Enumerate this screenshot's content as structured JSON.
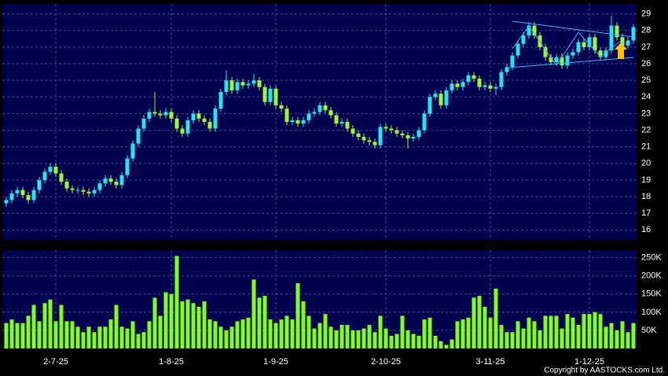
{
  "copyright": "Copyright by AASTOCKS.com Ltd.",
  "chart_data": [
    {
      "type": "candlestick",
      "categories": [
        null,
        null,
        null,
        null,
        null,
        null,
        null,
        null,
        null,
        "2-7-25",
        null,
        null,
        null,
        null,
        null,
        null,
        null,
        null,
        null,
        null,
        null,
        null,
        null,
        null,
        null,
        null,
        null,
        null,
        null,
        null,
        "1-8-25",
        null,
        null,
        null,
        null,
        null,
        null,
        null,
        null,
        null,
        null,
        null,
        null,
        null,
        null,
        null,
        null,
        null,
        null,
        "1-9-25",
        null,
        null,
        null,
        null,
        null,
        null,
        null,
        null,
        null,
        null,
        null,
        null,
        null,
        null,
        null,
        null,
        null,
        null,
        null,
        "2-10-25",
        null,
        null,
        null,
        null,
        null,
        null,
        null,
        null,
        null,
        null,
        null,
        null,
        null,
        null,
        null,
        null,
        null,
        null,
        "3-11-25",
        null,
        null,
        null,
        null,
        null,
        null,
        null,
        null,
        null,
        null,
        null,
        null,
        null,
        null,
        null,
        null,
        null,
        "1-12-25",
        null,
        null,
        null,
        null,
        null,
        null,
        null,
        null
      ],
      "open": [
        17.6,
        17.8,
        18.2,
        18.4,
        18.1,
        17.8,
        18.4,
        19.0,
        19.5,
        19.8,
        19.4,
        18.9,
        18.5,
        18.4,
        18.4,
        18.3,
        18.2,
        18.4,
        18.8,
        19.1,
        18.9,
        18.7,
        19.3,
        20.3,
        21.2,
        22.1,
        22.7,
        23.1,
        23.0,
        22.9,
        23.1,
        22.7,
        22.1,
        21.8,
        22.6,
        23.0,
        22.7,
        22.5,
        22.1,
        23.3,
        24.3,
        25.0,
        24.4,
        24.9,
        24.7,
        24.8,
        25.0,
        24.6,
        23.7,
        24.5,
        23.5,
        23.3,
        22.5,
        22.6,
        22.4,
        22.6,
        23.0,
        23.1,
        23.5,
        23.2,
        22.9,
        22.4,
        22.5,
        22.1,
        21.8,
        21.6,
        21.4,
        21.3,
        21.1,
        22.2,
        22.1,
        22.0,
        21.8,
        21.7,
        21.5,
        21.6,
        22.0,
        23.0,
        24.0,
        24.2,
        23.5,
        24.4,
        24.8,
        24.6,
        24.9,
        25.3,
        25.1,
        24.6,
        24.7,
        24.5,
        24.6,
        25.5,
        25.8,
        26.5,
        27.2,
        27.7,
        28.3,
        27.7,
        27.0,
        26.4,
        26.1,
        26.4,
        25.9,
        26.5,
        26.7,
        27.3,
        27.0,
        27.6,
        26.8,
        26.4,
        26.8,
        28.3,
        27.6,
        27.1,
        27.4
      ],
      "high": [
        18.0,
        18.4,
        18.6,
        18.6,
        18.3,
        18.6,
        19.2,
        19.7,
        20.0,
        20.0,
        19.6,
        19.1,
        18.7,
        18.6,
        18.6,
        18.5,
        18.6,
        19.0,
        19.3,
        19.3,
        19.1,
        19.5,
        20.5,
        21.4,
        22.3,
        22.9,
        23.3,
        24.3,
        23.2,
        23.3,
        23.3,
        22.9,
        22.3,
        22.8,
        23.2,
        23.2,
        22.9,
        22.7,
        23.5,
        24.5,
        25.6,
        25.2,
        25.1,
        25.1,
        25.0,
        25.4,
        25.2,
        24.8,
        24.7,
        24.7,
        23.7,
        23.5,
        22.8,
        22.8,
        22.8,
        23.2,
        23.3,
        23.7,
        23.7,
        23.4,
        23.1,
        22.7,
        22.7,
        22.3,
        22.0,
        21.8,
        21.6,
        21.5,
        22.4,
        22.4,
        22.3,
        22.2,
        22.0,
        21.9,
        21.8,
        22.2,
        23.2,
        24.2,
        24.4,
        24.4,
        24.6,
        25.0,
        25.0,
        25.1,
        25.5,
        25.5,
        25.3,
        24.9,
        24.9,
        24.8,
        25.7,
        26.0,
        26.7,
        27.4,
        27.9,
        28.5,
        28.5,
        27.9,
        27.2,
        26.6,
        26.6,
        26.6,
        26.7,
        26.9,
        27.5,
        27.5,
        27.8,
        27.8,
        27.0,
        27.0,
        28.9,
        28.5,
        27.8,
        27.6,
        28.4
      ],
      "low": [
        17.4,
        17.6,
        18.0,
        17.9,
        17.6,
        17.6,
        18.2,
        18.8,
        19.3,
        19.2,
        18.7,
        18.3,
        18.2,
        18.2,
        18.1,
        18.0,
        18.0,
        18.2,
        18.6,
        18.7,
        18.5,
        18.5,
        19.1,
        20.1,
        21.0,
        21.9,
        22.5,
        22.8,
        22.7,
        22.7,
        22.5,
        21.9,
        21.6,
        21.6,
        22.4,
        22.5,
        22.3,
        21.9,
        21.9,
        23.1,
        24.1,
        24.2,
        24.2,
        24.5,
        24.5,
        24.6,
        24.4,
        23.5,
        23.5,
        23.3,
        23.1,
        22.3,
        22.3,
        22.2,
        22.2,
        22.4,
        22.8,
        22.9,
        23.0,
        22.7,
        22.2,
        22.2,
        21.9,
        21.6,
        21.4,
        21.2,
        21.1,
        20.9,
        20.9,
        21.9,
        21.8,
        21.6,
        21.5,
        20.9,
        21.3,
        21.4,
        21.8,
        22.8,
        23.8,
        23.3,
        23.3,
        24.2,
        24.4,
        24.4,
        24.7,
        24.9,
        24.4,
        24.4,
        24.3,
        24.1,
        24.4,
        25.3,
        25.6,
        26.3,
        27.0,
        27.5,
        27.5,
        26.8,
        26.2,
        25.9,
        25.9,
        25.7,
        25.7,
        26.3,
        26.5,
        26.8,
        26.8,
        26.6,
        26.2,
        26.2,
        26.6,
        27.4,
        26.9,
        26.9,
        27.2
      ],
      "close": [
        17.8,
        18.2,
        18.4,
        18.1,
        17.8,
        18.4,
        19.0,
        19.5,
        19.8,
        19.4,
        18.9,
        18.5,
        18.4,
        18.4,
        18.3,
        18.2,
        18.4,
        18.8,
        19.1,
        18.9,
        18.7,
        19.3,
        20.3,
        21.2,
        22.1,
        22.7,
        23.1,
        23.0,
        22.9,
        23.1,
        22.7,
        22.1,
        21.8,
        22.6,
        23.0,
        22.7,
        22.5,
        22.1,
        23.3,
        24.3,
        25.0,
        24.4,
        24.9,
        24.7,
        24.8,
        25.0,
        24.6,
        23.7,
        24.5,
        23.5,
        23.3,
        22.5,
        22.6,
        22.4,
        22.6,
        23.0,
        23.1,
        23.5,
        23.2,
        22.9,
        22.4,
        22.5,
        22.1,
        21.8,
        21.6,
        21.4,
        21.3,
        21.1,
        22.2,
        22.1,
        22.0,
        21.8,
        21.7,
        21.5,
        21.6,
        22.0,
        23.0,
        24.0,
        24.2,
        23.5,
        24.4,
        24.8,
        24.6,
        24.9,
        25.3,
        25.1,
        24.6,
        24.7,
        24.5,
        24.6,
        25.5,
        25.8,
        26.5,
        27.2,
        27.7,
        28.3,
        27.7,
        27.0,
        26.4,
        26.1,
        26.4,
        25.9,
        26.5,
        26.7,
        27.3,
        27.0,
        27.6,
        26.8,
        26.4,
        26.8,
        28.3,
        27.6,
        27.1,
        27.4,
        28.2
      ],
      "up_color": "#22e6f2",
      "down_color": "#9ff53a",
      "ylim": [
        15.4,
        29.6
      ],
      "yticks": [
        16,
        17,
        18,
        19,
        20,
        21,
        22,
        23,
        24,
        25,
        26,
        27,
        28,
        29
      ],
      "grid": true
    },
    {
      "type": "bar",
      "values": [
        70000,
        80000,
        70000,
        70000,
        90000,
        120000,
        75000,
        125000,
        135000,
        75000,
        120000,
        75000,
        75000,
        60000,
        45000,
        60000,
        45000,
        60000,
        60000,
        80000,
        120000,
        60000,
        55000,
        75000,
        40000,
        45000,
        75000,
        140000,
        90000,
        155000,
        150000,
        255000,
        130000,
        135000,
        125000,
        115000,
        130000,
        80000,
        75000,
        60000,
        50000,
        60000,
        75000,
        80000,
        85000,
        190000,
        140000,
        145000,
        80000,
        70000,
        80000,
        90000,
        80000,
        180000,
        130000,
        90000,
        55000,
        70000,
        95000,
        60000,
        50000,
        65000,
        65000,
        50000,
        50000,
        55000,
        65000,
        45000,
        90000,
        55000,
        35000,
        40000,
        90000,
        50000,
        40000,
        35000,
        80000,
        85000,
        35000,
        20000,
        10000,
        25000,
        75000,
        80000,
        85000,
        140000,
        145000,
        115000,
        85000,
        165000,
        65000,
        45000,
        45000,
        75000,
        55000,
        85000,
        75000,
        50000,
        90000,
        90000,
        90000,
        55000,
        95000,
        85000,
        65000,
        95000,
        95000,
        100000,
        95000,
        60000,
        70000,
        50000,
        75000,
        45000,
        70000
      ],
      "color": "#7fff1a",
      "ylim": [
        0,
        271000
      ],
      "yticks": [
        {
          "value": 50000,
          "label": "50K"
        },
        {
          "value": 100000,
          "label": "100K"
        },
        {
          "value": 150000,
          "label": "150K"
        },
        {
          "value": 200000,
          "label": "200K"
        },
        {
          "value": 250000,
          "label": "250K"
        }
      ],
      "grid": true
    }
  ]
}
